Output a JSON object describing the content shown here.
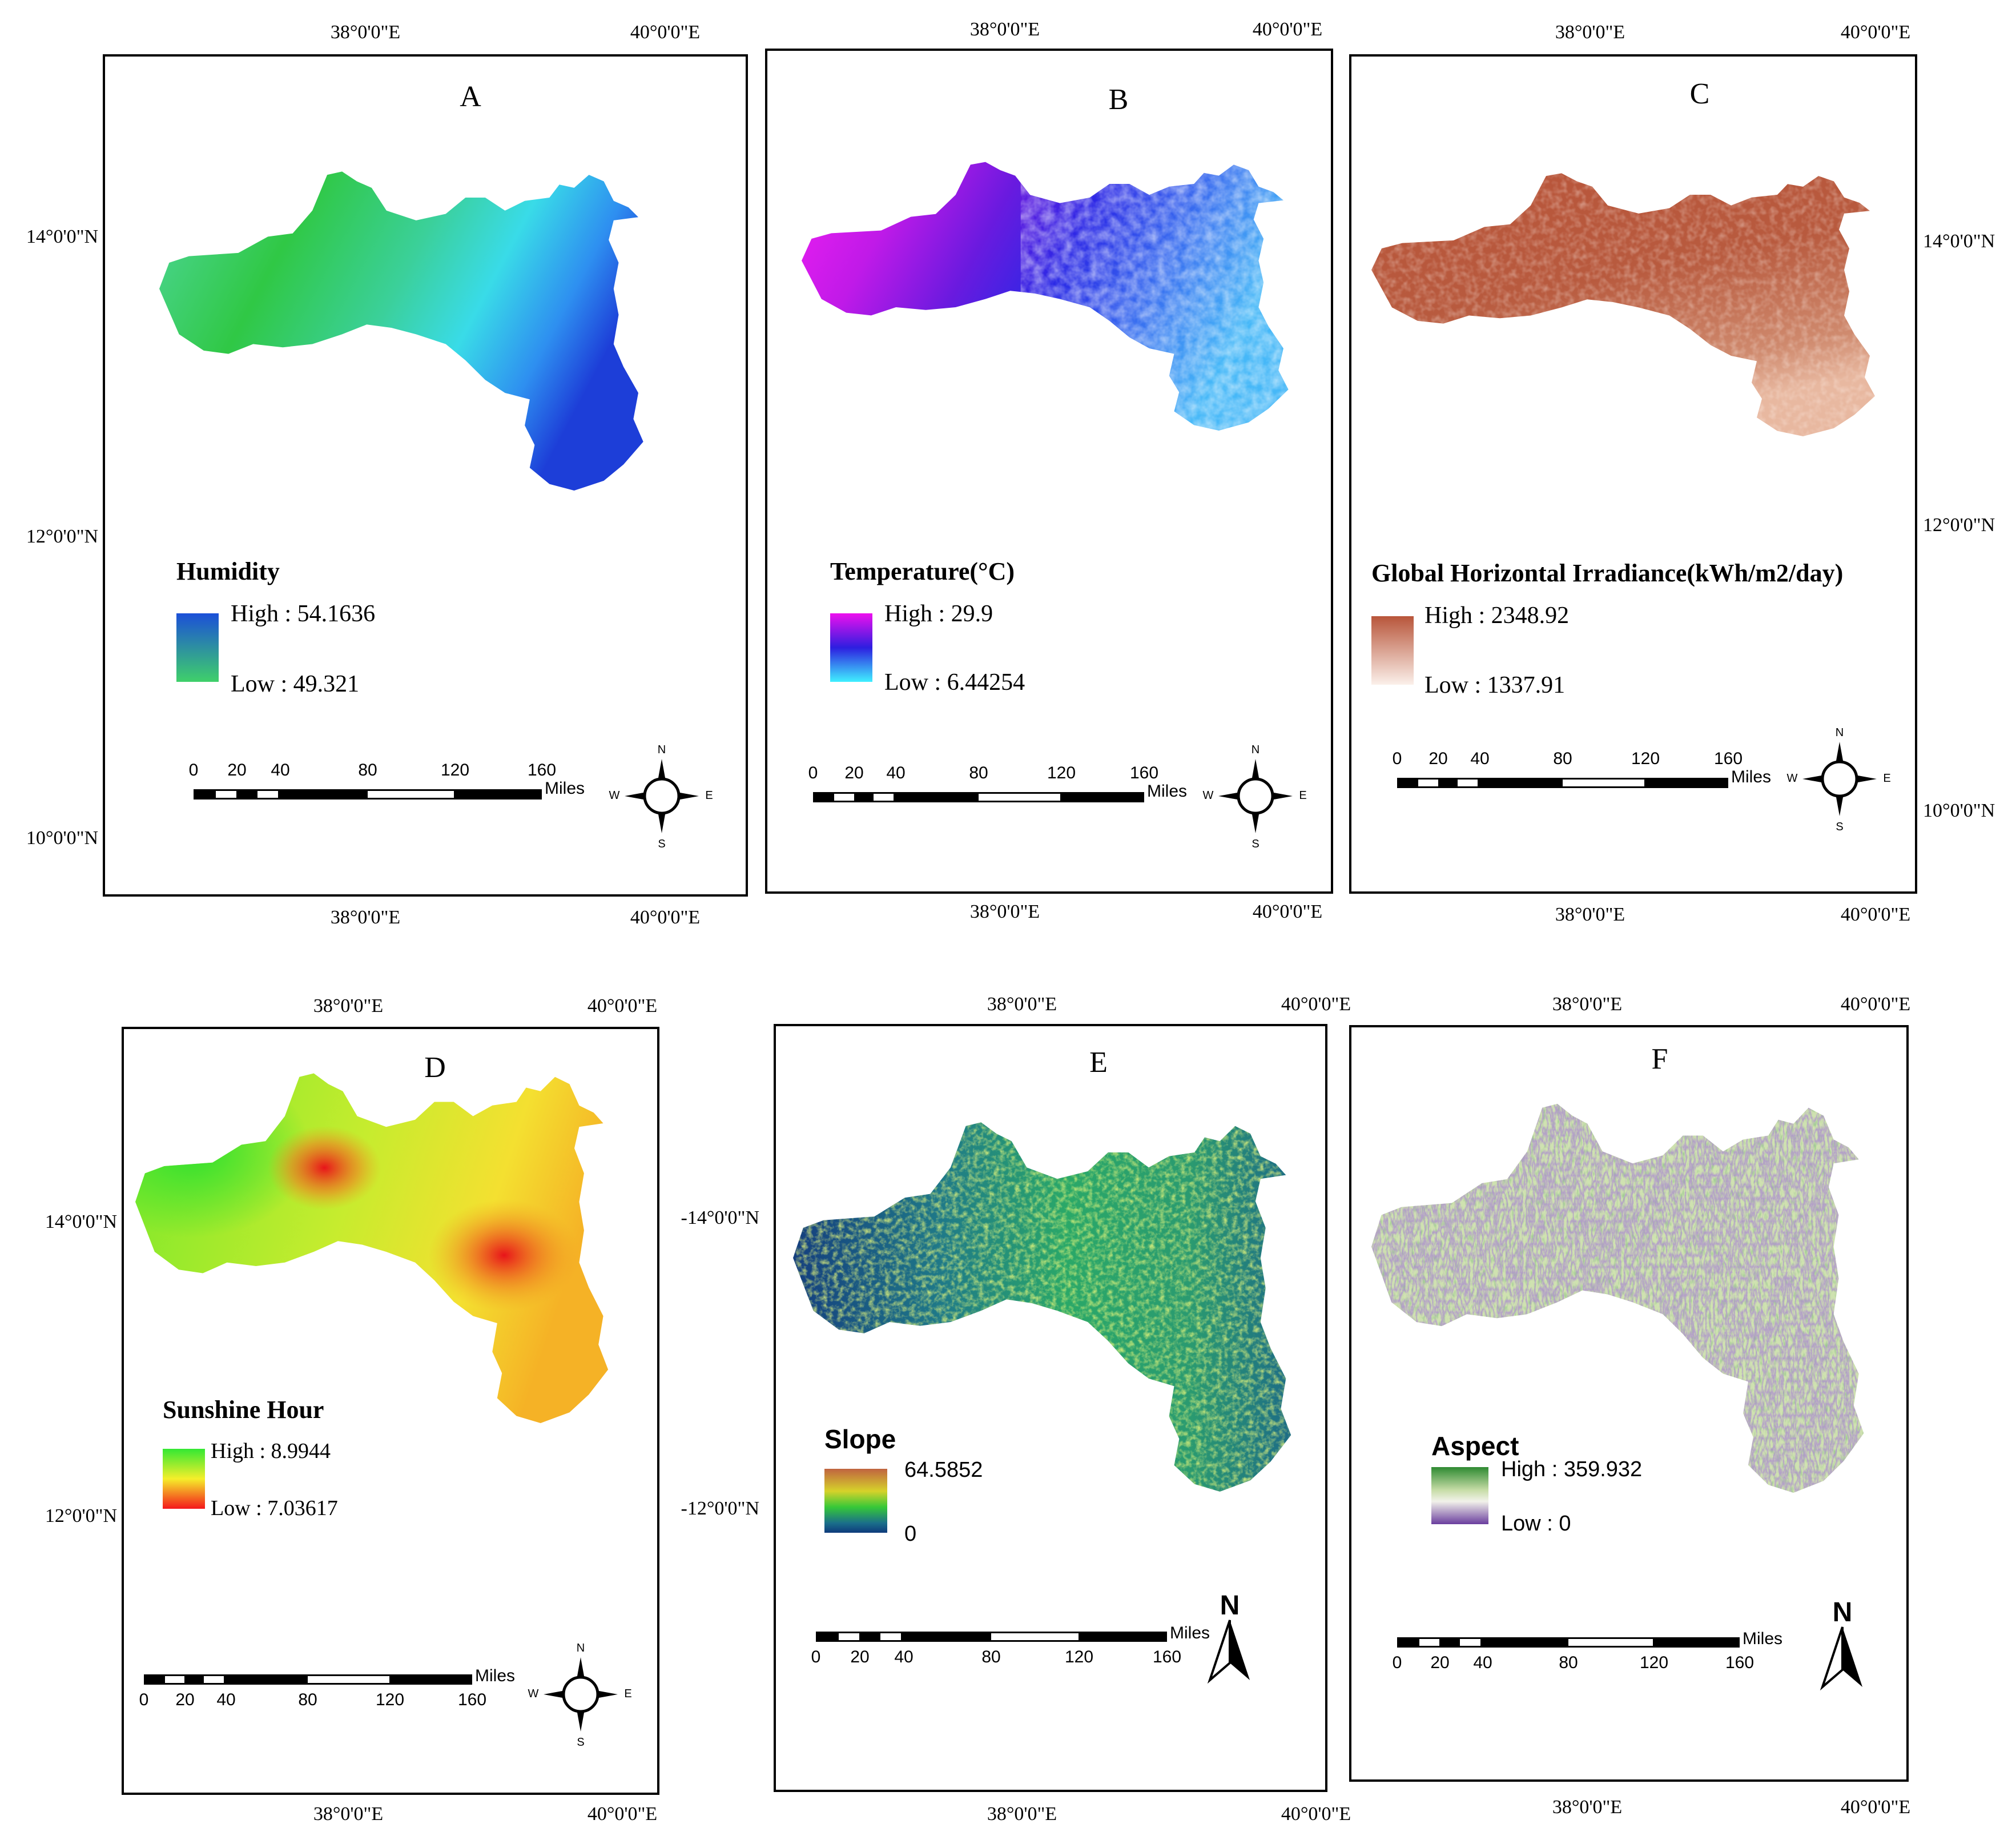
{
  "coords": {
    "lon38": "38°0'0\"E",
    "lon40": "40°0'0\"E",
    "lat14": "14°0'0\"N",
    "lat12": "12°0'0\"N",
    "lat10": "10°0'0\"N",
    "lat14b": "-14°0'0\"N",
    "lat12b": "-12°0'0\"N"
  },
  "scale": {
    "ticks": [
      "0",
      "20",
      "40",
      "80",
      "120",
      "160"
    ],
    "unit": "Miles"
  },
  "compass": {
    "n": "N",
    "s": "S",
    "e": "E",
    "w": "W"
  },
  "panels": [
    {
      "letter": "A",
      "legend_title": "Humidity",
      "high": "High : 54.1636",
      "low": "Low : 49.321",
      "colors": [
        "#1b4fd8",
        "#3fd06a"
      ]
    },
    {
      "letter": "B",
      "legend_title": "Temperature(°C)",
      "high": "High : 29.9",
      "low": "Low : 6.44254",
      "colors": [
        "#ee10ee",
        "#2d1ee0",
        "#40f0ff"
      ]
    },
    {
      "letter": "C",
      "legend_title": "Global Horizontal Irradiance(kWh/m2/day)",
      "high": "High : 2348.92",
      "low": "Low : 1337.91",
      "colors": [
        "#b8553a",
        "#fbf0ea"
      ]
    },
    {
      "letter": "D",
      "legend_title": "Sunshine Hour",
      "high": "High : 8.9944",
      "low": "Low : 7.03617",
      "colors": [
        "#33e833",
        "#f5ef2a",
        "#f4171b"
      ]
    },
    {
      "letter": "E",
      "legend_title": "Slope",
      "high": "64.5852",
      "low": "0",
      "colors": [
        "#c06440",
        "#d6d22a",
        "#36c838",
        "#1a6e8a",
        "#0e3a7c"
      ]
    },
    {
      "letter": "F",
      "legend_title": "Aspect",
      "high": "High : 359.932",
      "low": "Low : 0",
      "colors": [
        "#2e8a32",
        "#c6dca6",
        "#f2f2ea",
        "#6a3e9e"
      ]
    }
  ]
}
